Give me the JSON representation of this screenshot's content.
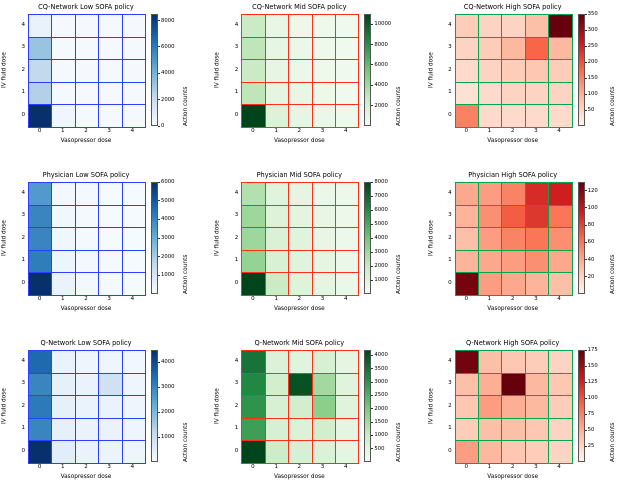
{
  "figure": {
    "xlabel": "Vasopressor dose",
    "ylabel": "IV fluid dose",
    "colorbar_label": "Action counts",
    "xticks": [
      "0",
      "1",
      "2",
      "3",
      "4"
    ],
    "yticks": [
      "0",
      "1",
      "2",
      "3",
      "4"
    ]
  },
  "chart_data": [
    {
      "type": "heatmap",
      "title": "CQ-Network Low SOFA policy",
      "colormap": "Blues",
      "edge_color": "#2a3fff",
      "vmin": 0,
      "vmax": 8500,
      "colorbar_ticks": [
        0,
        2000,
        4000,
        6000,
        8000
      ],
      "x": [
        0,
        1,
        2,
        3,
        4
      ],
      "y": [
        0,
        1,
        2,
        3,
        4
      ],
      "values_by_y": [
        [
          8500,
          300,
          150,
          100,
          100
        ],
        [
          2600,
          150,
          100,
          100,
          100
        ],
        [
          2200,
          150,
          100,
          100,
          100
        ],
        [
          3200,
          150,
          100,
          100,
          100
        ],
        [
          600,
          100,
          100,
          100,
          100
        ]
      ]
    },
    {
      "type": "heatmap",
      "title": "CQ-Network Mid SOFA policy",
      "colormap": "Greens",
      "edge_color": "#ff2d1a",
      "vmin": 0,
      "vmax": 11000,
      "colorbar_ticks": [
        2000,
        4000,
        6000,
        8000,
        10000
      ],
      "x": [
        0,
        1,
        2,
        3,
        4
      ],
      "y": [
        0,
        1,
        2,
        3,
        4
      ],
      "values_by_y": [
        [
          11000,
          1500,
          900,
          700,
          500
        ],
        [
          3000,
          1000,
          800,
          600,
          400
        ],
        [
          2500,
          900,
          700,
          500,
          400
        ],
        [
          3000,
          900,
          700,
          500,
          400
        ],
        [
          2500,
          800,
          600,
          500,
          400
        ]
      ]
    },
    {
      "type": "heatmap",
      "title": "CQ-Network High SOFA policy",
      "colormap": "Reds",
      "edge_color": "#00a550",
      "vmin": 0,
      "vmax": 350,
      "colorbar_ticks": [
        50,
        100,
        150,
        200,
        250,
        300,
        350
      ],
      "x": [
        0,
        1,
        2,
        3,
        4
      ],
      "y": [
        0,
        1,
        2,
        3,
        4
      ],
      "values_by_y": [
        [
          150,
          40,
          40,
          40,
          40
        ],
        [
          30,
          40,
          50,
          50,
          50
        ],
        [
          40,
          50,
          60,
          70,
          60
        ],
        [
          50,
          60,
          90,
          180,
          90
        ],
        [
          60,
          50,
          50,
          80,
          350
        ]
      ]
    },
    {
      "type": "heatmap",
      "title": "Physician Low SOFA policy",
      "colormap": "Blues",
      "edge_color": "#2a3fff",
      "vmin": 0,
      "vmax": 6000,
      "colorbar_ticks": [
        1000,
        2000,
        3000,
        4000,
        5000,
        6000
      ],
      "x": [
        0,
        1,
        2,
        3,
        4
      ],
      "y": [
        0,
        1,
        2,
        3,
        4
      ],
      "values_by_y": [
        [
          6000,
          400,
          150,
          80,
          60
        ],
        [
          4200,
          300,
          120,
          80,
          50
        ],
        [
          4000,
          250,
          100,
          60,
          50
        ],
        [
          4000,
          200,
          100,
          60,
          50
        ],
        [
          3500,
          150,
          80,
          60,
          50
        ]
      ]
    },
    {
      "type": "heatmap",
      "title": "Physician Mid SOFA policy",
      "colormap": "Greens",
      "edge_color": "#ff2d1a",
      "vmin": 0,
      "vmax": 8000,
      "colorbar_ticks": [
        1000,
        2000,
        3000,
        4000,
        5000,
        6000,
        7000,
        8000
      ],
      "x": [
        0,
        1,
        2,
        3,
        4
      ],
      "y": [
        0,
        1,
        2,
        3,
        4
      ],
      "values_by_y": [
        [
          8000,
          1800,
          1000,
          700,
          500
        ],
        [
          3200,
          1300,
          900,
          700,
          500
        ],
        [
          3000,
          1200,
          900,
          600,
          450
        ],
        [
          3000,
          1100,
          800,
          600,
          400
        ],
        [
          2500,
          900,
          700,
          500,
          400
        ]
      ]
    },
    {
      "type": "heatmap",
      "title": "Physician High SOFA policy",
      "colormap": "Reds",
      "edge_color": "#00a550",
      "vmin": 0,
      "vmax": 130,
      "colorbar_ticks": [
        20,
        40,
        60,
        80,
        100,
        120
      ],
      "x": [
        0,
        1,
        2,
        3,
        4
      ],
      "y": [
        0,
        1,
        2,
        3,
        4
      ],
      "values_by_y": [
        [
          125,
          45,
          40,
          35,
          30
        ],
        [
          35,
          40,
          45,
          50,
          40
        ],
        [
          30,
          45,
          55,
          60,
          50
        ],
        [
          35,
          50,
          70,
          85,
          60
        ],
        [
          40,
          45,
          55,
          90,
          95
        ]
      ]
    },
    {
      "type": "heatmap",
      "title": "Q-Network Low SOFA policy",
      "colormap": "Blues",
      "edge_color": "#2a3fff",
      "vmin": 0,
      "vmax": 4500,
      "colorbar_ticks": [
        1000,
        2000,
        3000,
        4000
      ],
      "x": [
        0,
        1,
        2,
        3,
        4
      ],
      "y": [
        0,
        1,
        2,
        3,
        4
      ],
      "values_by_y": [
        [
          4500,
          500,
          300,
          250,
          200
        ],
        [
          3000,
          400,
          300,
          300,
          200
        ],
        [
          3200,
          400,
          300,
          300,
          200
        ],
        [
          3000,
          400,
          300,
          900,
          200
        ],
        [
          3500,
          300,
          200,
          200,
          150
        ]
      ]
    },
    {
      "type": "heatmap",
      "title": "Q-Network Mid SOFA policy",
      "colormap": "Greens",
      "edge_color": "#ff2d1a",
      "vmin": 0,
      "vmax": 4200,
      "colorbar_ticks": [
        500,
        1000,
        1500,
        2000,
        2500,
        3000,
        3500,
        4000
      ],
      "x": [
        0,
        1,
        2,
        3,
        4
      ],
      "y": [
        0,
        1,
        2,
        3,
        4
      ],
      "values_by_y": [
        [
          4200,
          900,
          700,
          600,
          400
        ],
        [
          2800,
          700,
          600,
          800,
          400
        ],
        [
          3000,
          700,
          800,
          1800,
          500
        ],
        [
          3200,
          800,
          4000,
          1500,
          500
        ],
        [
          3500,
          600,
          500,
          700,
          400
        ]
      ]
    },
    {
      "type": "heatmap",
      "title": "Q-Network High SOFA policy",
      "colormap": "Reds",
      "edge_color": "#00a550",
      "vmin": 0,
      "vmax": 175,
      "colorbar_ticks": [
        25,
        50,
        75,
        100,
        125,
        150,
        175
      ],
      "x": [
        0,
        1,
        2,
        3,
        4
      ],
      "y": [
        0,
        1,
        2,
        3,
        4
      ],
      "values_by_y": [
        [
          60,
          45,
          35,
          30,
          25
        ],
        [
          30,
          40,
          40,
          35,
          25
        ],
        [
          35,
          60,
          50,
          45,
          30
        ],
        [
          40,
          50,
          175,
          45,
          35
        ],
        [
          170,
          40,
          35,
          30,
          25
        ]
      ]
    }
  ]
}
